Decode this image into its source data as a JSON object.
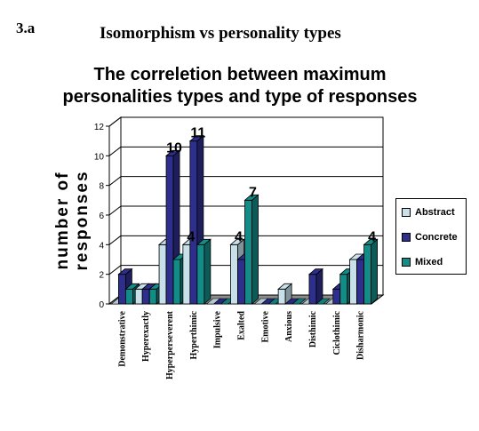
{
  "figure_label": "3.a",
  "page_heading": "Isomorphism vs personality types",
  "chart_title_line1": "The correletion between maximum",
  "chart_title_line2": "personalities types and type of responses",
  "colors": {
    "Abstract": "#c7e0ea",
    "Concrete": "#2e2e8c",
    "Mixed": "#138c87"
  },
  "chart_data": {
    "type": "bar",
    "title": "The correletion between maximum personalities types and type of responses",
    "xlabel": "",
    "ylabel_line1": "number of",
    "ylabel_line2": "responses",
    "ylim": [
      0,
      12
    ],
    "yticks": [
      0,
      2,
      4,
      6,
      8,
      10,
      12
    ],
    "legend_position": "right",
    "grid": true,
    "categories": [
      "Demonstrative",
      "Hyperexactly",
      "Hyperperseverent",
      "Hyperthimic",
      "Impulsive",
      "Exalted",
      "Emotive",
      "Anxious",
      "Disthimic",
      "Ciclothimic",
      "Disharmonic"
    ],
    "series": [
      {
        "name": "Abstract",
        "values": [
          0,
          1,
          4,
          4,
          0,
          4,
          0,
          1,
          0,
          0,
          3
        ]
      },
      {
        "name": "Concrete",
        "values": [
          2,
          1,
          10,
          11,
          0,
          3,
          0,
          0,
          2,
          1,
          3
        ]
      },
      {
        "name": "Mixed",
        "values": [
          1,
          1,
          3,
          4,
          0,
          7,
          0,
          0,
          0,
          2,
          4
        ]
      }
    ],
    "data_labels": [
      {
        "text": "10",
        "series": "Concrete",
        "category": "Hyperperseverent"
      },
      {
        "text": "11",
        "series": "Concrete",
        "category": "Hyperthimic"
      },
      {
        "text": "4",
        "series": "Abstract",
        "category": "Hyperthimic"
      },
      {
        "text": "4",
        "series": "Abstract",
        "category": "Exalted"
      },
      {
        "text": "7",
        "series": "Mixed",
        "category": "Exalted"
      },
      {
        "text": "4",
        "series": "Mixed",
        "category": "Disharmonic"
      }
    ]
  }
}
